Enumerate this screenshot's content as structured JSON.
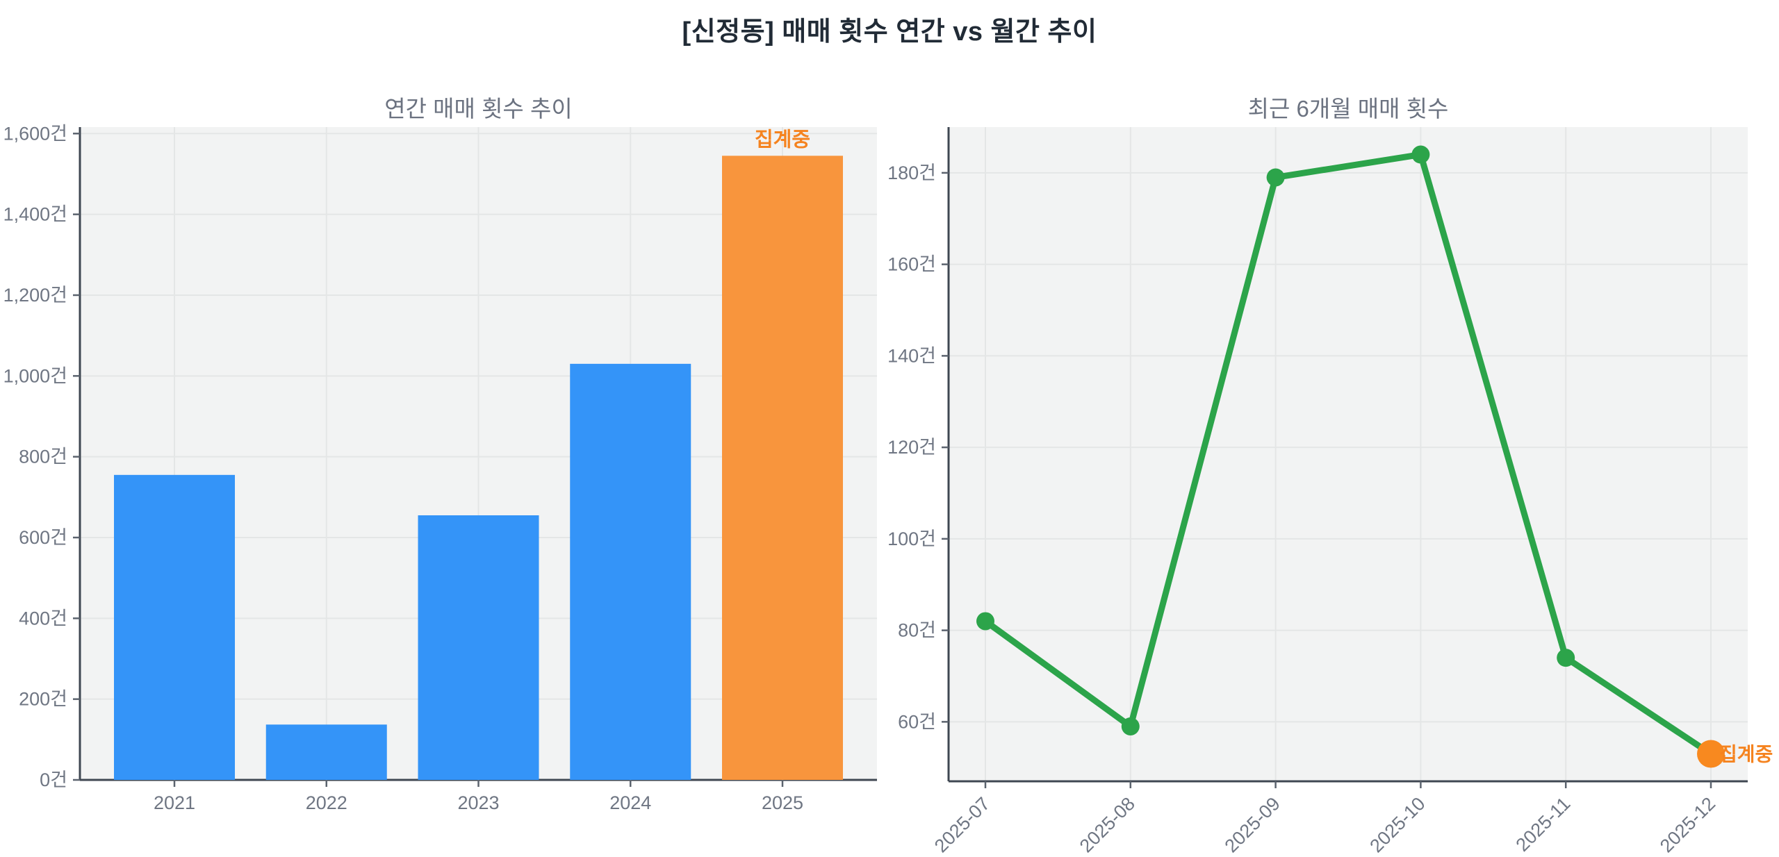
{
  "main_title": "[신정동] 매매 횟수 연간 vs 월간 추이",
  "unit_suffix": "건",
  "colors": {
    "bar_blue": "#3494f8",
    "bar_orange": "#f8953d",
    "line_green": "#2ca44a",
    "point_orange": "#f8891f",
    "annotation_orange": "#f5831f",
    "plot_bg": "#f2f3f3",
    "gridline": "#e4e6e6",
    "spine": "#3f4752",
    "tick_mark": "#5b636e",
    "tick_label": "#6f7683",
    "title_gray": "#6b7280",
    "main_title_color": "#212b36"
  },
  "chart_data": [
    {
      "type": "bar",
      "title": "연간 매매 횟수 추이",
      "categories": [
        "2021",
        "2022",
        "2023",
        "2024",
        "2025"
      ],
      "values": [
        755,
        137,
        655,
        1030,
        1545
      ],
      "bar_colors": [
        "#3494f8",
        "#3494f8",
        "#3494f8",
        "#3494f8",
        "#f8953d"
      ],
      "annotation": {
        "text": "집계중",
        "target_index": 4,
        "color": "#f5831f"
      },
      "xlabel": "",
      "ylabel": "",
      "ylim": [
        0,
        1616
      ],
      "yticks": {
        "values": [
          0,
          200,
          400,
          600,
          800,
          1000,
          1200,
          1400,
          1600
        ],
        "labels": [
          "0건",
          "200건",
          "400건",
          "600건",
          "800건",
          "1,000건",
          "1,200건",
          "1,400건",
          "1,600건"
        ]
      },
      "grid": true,
      "legend": "none"
    },
    {
      "type": "line",
      "title": "최근 6개월 매매 횟수",
      "x": [
        "2025-07",
        "2025-08",
        "2025-09",
        "2025-10",
        "2025-11",
        "2025-12"
      ],
      "values": [
        82,
        59,
        179,
        184,
        74,
        53
      ],
      "line_color": "#2ca44a",
      "marker_color": "#2ca44a",
      "last_point_color": "#f8891f",
      "annotation": {
        "text": "집계중",
        "target_index": 5,
        "color": "#f5831f"
      },
      "xlabel": "",
      "ylabel": "",
      "ylim": [
        47,
        190
      ],
      "yticks": {
        "values": [
          60,
          80,
          100,
          120,
          140,
          160,
          180
        ],
        "labels": [
          "60건",
          "80건",
          "100건",
          "120건",
          "140건",
          "160건",
          "180건"
        ]
      },
      "xtick_rotation_deg": -45,
      "grid": true,
      "legend": "none"
    }
  ]
}
